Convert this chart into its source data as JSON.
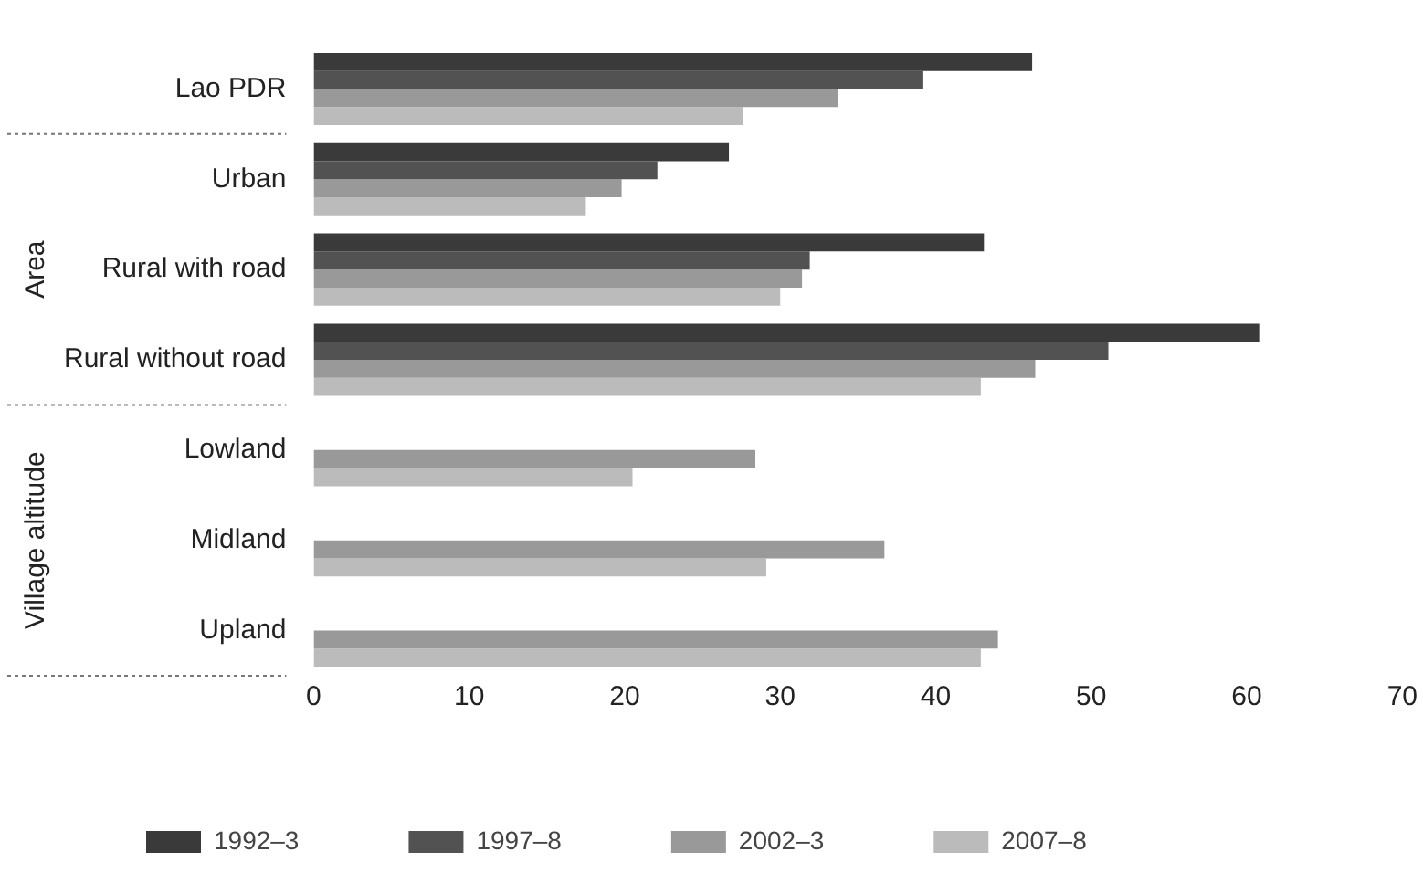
{
  "chart_data": {
    "type": "bar",
    "orientation": "horizontal",
    "categories": [
      "Lao PDR",
      "Urban",
      "Rural with road",
      "Rural without road",
      "Lowland",
      "Midland",
      "Upland"
    ],
    "series": [
      {
        "name": "1992–3",
        "color": "#3a3a3a",
        "values": [
          46.2,
          26.7,
          43.1,
          60.8,
          null,
          null,
          null
        ]
      },
      {
        "name": "1997–8",
        "color": "#525252",
        "values": [
          39.2,
          22.1,
          31.9,
          51.1,
          null,
          null,
          null
        ]
      },
      {
        "name": "2002–3",
        "color": "#999999",
        "values": [
          33.7,
          19.8,
          31.4,
          46.4,
          28.4,
          36.7,
          44.0
        ]
      },
      {
        "name": "2007–8",
        "color": "#bbbbbb",
        "values": [
          27.6,
          17.5,
          30.0,
          42.9,
          20.5,
          29.1,
          42.9
        ]
      }
    ],
    "xlim": [
      0,
      70
    ],
    "xticks": [
      0,
      10,
      20,
      30,
      40,
      50,
      60,
      70
    ],
    "grid": false,
    "legend": "bottom",
    "annotations": [
      "Area",
      "Village altitude"
    ]
  }
}
